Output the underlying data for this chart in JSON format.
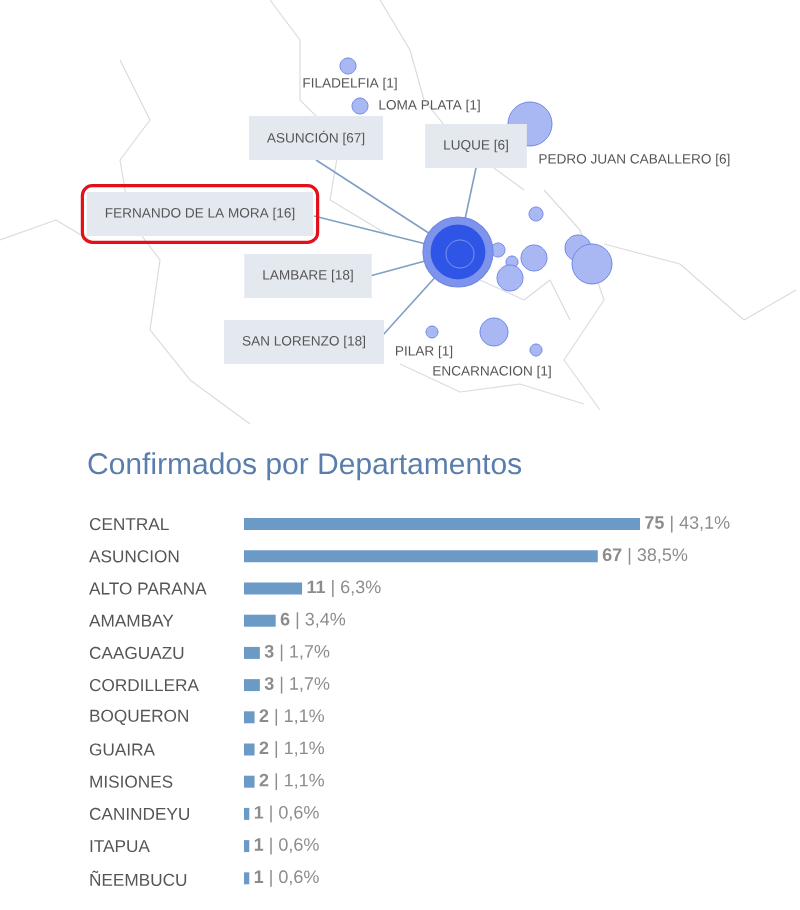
{
  "chart_data": [
    {
      "type": "other",
      "annotations": [
        "FILADELFIA [1]",
        "LOMA PLATA [1]",
        "ASUNCIÓN [67]",
        "LUQUE [6]",
        "PEDRO JUAN CABALLERO [6]",
        "FERNANDO DE LA MORA [16]",
        "LAMBARE [18]",
        "SAN LORENZO [18]",
        "PILAR [1]",
        "ENCARNACION [1]"
      ]
    },
    {
      "type": "bar",
      "orientation": "horizontal",
      "title": "Confirmados por Departamentos",
      "categories": [
        "CENTRAL",
        "ASUNCION",
        "ALTO PARANA",
        "AMAMBAY",
        "CAAGUAZU",
        "CORDILLERA",
        "BOQUERON",
        "GUAIRA",
        "MISIONES",
        "CANINDEYU",
        "ITAPUA",
        "ÑEEMBUCU"
      ],
      "values": [
        75,
        67,
        11,
        6,
        3,
        3,
        2,
        2,
        2,
        1,
        1,
        1
      ],
      "color": "#6b9ac7",
      "value_labels": [
        "**75** | 43,1%",
        "**67** | 38,5%",
        "**11** | 6,3%",
        "**6** | 3,4%",
        "**3** | 1,7%",
        "**3** | 1,7%",
        "**2** | 1,1%",
        "**2** | 1,1%",
        "**2** | 1,1%",
        "**1** | 0,6%",
        "**1** | 0,6%",
        "**1** | 0,6%"
      ]
    }
  ]
}
